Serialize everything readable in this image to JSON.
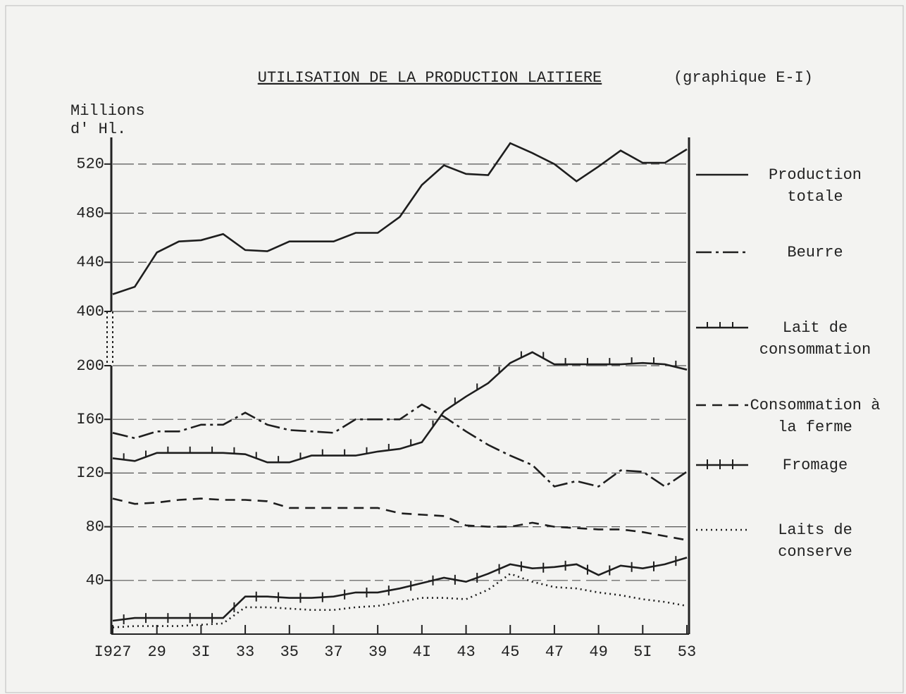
{
  "chart_data": [
    {
      "type": "line",
      "title": "UTILISATION DE LA PRODUCTION LAITIERE",
      "subtitle": "(graphique E-I)",
      "ylabel": "Millions d' Hl.",
      "ylim": [
        400,
        540
      ],
      "yticks": [
        400,
        440,
        480,
        520
      ],
      "grid": true,
      "series": [
        {
          "name": "Production totale",
          "color": "#1e1e1e",
          "style": "solid",
          "values": [
            414,
            420,
            448,
            457,
            458,
            463,
            450,
            449,
            457,
            457,
            457,
            464,
            464,
            477,
            503,
            519,
            512,
            511,
            537,
            529,
            520,
            506,
            518,
            531,
            521,
            521,
            532
          ]
        }
      ]
    },
    {
      "type": "line",
      "ylim": [
        0,
        200
      ],
      "yticks": [
        {
          "value": 40,
          "label": "40"
        },
        {
          "value": 80,
          "label": "80"
        },
        {
          "value": 120,
          "label": "I20"
        },
        {
          "value": 160,
          "label": "I60"
        },
        {
          "value": 200,
          "label": "200"
        }
      ],
      "grid": true,
      "categories": [
        "I927",
        null,
        "29",
        null,
        "3I",
        null,
        "33",
        null,
        "35",
        null,
        "37",
        null,
        "39",
        null,
        "4I",
        null,
        "43",
        null,
        "45",
        null,
        "47",
        null,
        "49",
        null,
        "5I",
        null,
        "53"
      ],
      "series": [
        {
          "name": "Beurre",
          "color": "#1e1e1e",
          "style": "dashdot",
          "values": [
            150,
            146,
            151,
            151,
            156,
            156,
            165,
            156,
            152,
            151,
            150,
            160,
            160,
            160,
            171,
            162,
            151,
            141,
            133,
            126,
            110,
            114,
            110,
            122,
            121,
            110,
            121
          ]
        },
        {
          "name": "Lait de consommation",
          "color": "#1e1e1e",
          "style": "ticked",
          "values": [
            131,
            129,
            135,
            135,
            135,
            135,
            134,
            128,
            128,
            133,
            133,
            133,
            136,
            138,
            143,
            166,
            177,
            187,
            202,
            210,
            201,
            201,
            201,
            201,
            202,
            201,
            197
          ]
        },
        {
          "name": "Consommation à la ferme",
          "color": "#1e1e1e",
          "style": "dashed",
          "values": [
            101,
            97,
            98,
            100,
            101,
            100,
            100,
            99,
            94,
            94,
            94,
            94,
            94,
            90,
            89,
            88,
            81,
            80,
            80,
            83,
            80,
            79,
            78,
            78,
            76,
            73,
            70
          ]
        },
        {
          "name": "Fromage",
          "color": "#1e1e1e",
          "style": "dashtick",
          "values": [
            10,
            12,
            12,
            12,
            12,
            12,
            28,
            28,
            27,
            27,
            28,
            31,
            31,
            34,
            38,
            42,
            39,
            45,
            52,
            49,
            50,
            52,
            44,
            51,
            49,
            52,
            57
          ]
        },
        {
          "name": "Laits de conserve",
          "color": "#1e1e1e",
          "style": "dotted",
          "values": [
            5,
            6,
            6,
            6,
            7,
            8,
            20,
            20,
            19,
            18,
            18,
            20,
            21,
            24,
            27,
            27,
            26,
            33,
            45,
            39,
            35,
            34,
            31,
            29,
            26,
            24,
            21
          ]
        }
      ]
    }
  ]
}
